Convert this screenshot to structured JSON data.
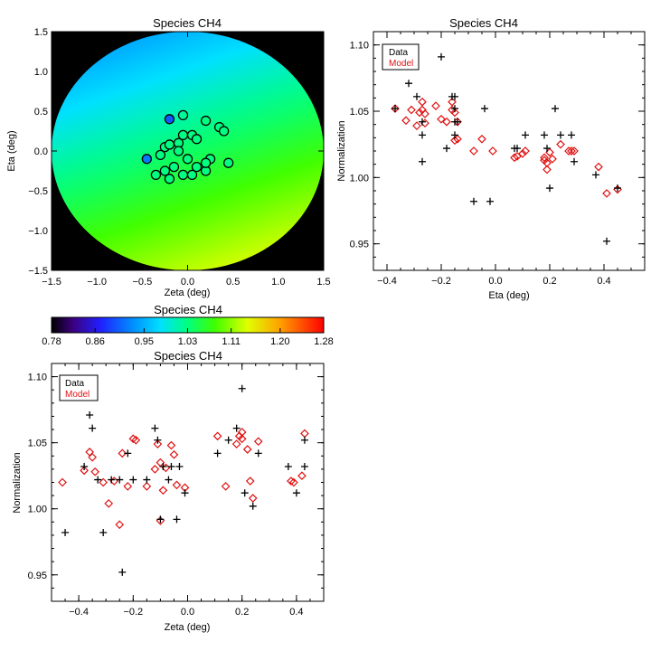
{
  "colors": {
    "data_marker": "#000000",
    "model_marker": "#e01010",
    "background": "#ffffff",
    "map_outside": "#000000"
  },
  "chart_data": [
    {
      "id": "map",
      "type": "heatmap",
      "title": "Species CH4",
      "xlabel": "Zeta (deg)",
      "ylabel": "Eta (deg)",
      "xlim": [
        -1.5,
        1.5
      ],
      "ylim": [
        -1.5,
        1.5
      ],
      "xticks": [
        -1.5,
        -1.0,
        -0.5,
        0.0,
        0.5,
        1.0,
        1.5
      ],
      "xtick_labels": [
        "−1.5",
        "−1.0",
        "−0.5",
        "0.0",
        "0.5",
        "1.0",
        "1.5"
      ],
      "yticks": [
        -1.5,
        -1.0,
        -0.5,
        0.0,
        0.5,
        1.0,
        1.5
      ],
      "ytick_labels": [
        "−1.5",
        "−1.0",
        "−0.5",
        "0.0",
        "0.5",
        "1.0",
        "1.5"
      ],
      "field_radius_deg": 1.5,
      "field_value_top": 0.94,
      "field_value_bottom": 1.14,
      "points": [
        [
          -0.2,
          0.4,
          0.9
        ],
        [
          -0.05,
          0.45,
          1.02
        ],
        [
          -0.45,
          -0.1,
          0.92
        ],
        [
          -0.3,
          -0.05,
          1.03
        ],
        [
          -0.25,
          0.05,
          1.03
        ],
        [
          -0.2,
          0.08,
          1.03
        ],
        [
          -0.1,
          0.1,
          1.03
        ],
        [
          -0.05,
          0.2,
          1.03
        ],
        [
          0.05,
          0.2,
          1.03
        ],
        [
          0.1,
          0.15,
          1.03
        ],
        [
          0.2,
          0.38,
          1.03
        ],
        [
          0.35,
          0.3,
          1.03
        ],
        [
          0.4,
          0.25,
          1.03
        ],
        [
          -0.35,
          -0.3,
          1.03
        ],
        [
          -0.25,
          -0.25,
          1.03
        ],
        [
          -0.15,
          -0.2,
          1.03
        ],
        [
          -0.05,
          -0.3,
          1.03
        ],
        [
          0.05,
          -0.3,
          1.03
        ],
        [
          0.1,
          -0.2,
          1.03
        ],
        [
          0.2,
          -0.25,
          1.03
        ],
        [
          0.25,
          -0.1,
          1.03
        ],
        [
          0.45,
          -0.15,
          1.03
        ],
        [
          -0.2,
          -0.35,
          1.03
        ],
        [
          0.2,
          -0.15,
          1.03
        ],
        [
          -0.1,
          0.0,
          1.03
        ],
        [
          0.0,
          -0.1,
          1.03
        ]
      ]
    },
    {
      "id": "colorbar",
      "type": "heatmap",
      "title": "Species CH4",
      "range": [
        0.78,
        1.28
      ],
      "tick_values": [
        0.78,
        0.86,
        0.95,
        1.03,
        1.11,
        1.2,
        1.28
      ],
      "tick_labels": [
        "0.78",
        "0.86",
        "0.95",
        "1.03",
        "1.11",
        "1.20",
        "1.28"
      ]
    },
    {
      "id": "eta",
      "type": "scatter",
      "title": "Species CH4",
      "xlabel": "Eta (deg)",
      "ylabel": "Normalization",
      "xlim": [
        -0.45,
        0.55
      ],
      "ylim": [
        0.93,
        1.11
      ],
      "xticks": [
        -0.4,
        -0.2,
        0.0,
        0.2,
        0.4
      ],
      "xtick_labels": [
        "−0.4",
        "−0.2",
        "0.0",
        "0.2",
        "0.4"
      ],
      "yticks": [
        0.95,
        1.0,
        1.05,
        1.1
      ],
      "ytick_labels": [
        "0.95",
        "1.00",
        "1.05",
        "1.10"
      ],
      "legend": {
        "location": "top-left",
        "data_label": "Data",
        "model_label": "Model"
      },
      "series": [
        {
          "name": "Data",
          "marker": "plus",
          "x": [
            -0.37,
            -0.32,
            -0.29,
            -0.27,
            -0.27,
            -0.27,
            -0.2,
            -0.18,
            -0.16,
            -0.15,
            -0.15,
            -0.14,
            -0.15,
            -0.15,
            -0.08,
            -0.04,
            -0.02,
            0.07,
            0.08,
            0.11,
            0.18,
            0.19,
            0.2,
            0.22,
            0.24,
            0.28,
            0.29,
            0.37,
            0.41,
            0.45
          ],
          "y": [
            1.052,
            1.071,
            1.061,
            1.042,
            1.032,
            1.012,
            1.091,
            1.022,
            1.061,
            1.061,
            1.042,
            1.042,
            1.052,
            1.032,
            0.982,
            1.052,
            0.982,
            1.022,
            1.022,
            1.032,
            1.032,
            1.022,
            0.992,
            1.052,
            1.032,
            1.032,
            1.012,
            1.002,
            0.952,
            0.992
          ]
        },
        {
          "name": "Model",
          "marker": "diamond",
          "x": [
            -0.37,
            -0.33,
            -0.31,
            -0.29,
            -0.28,
            -0.27,
            -0.27,
            -0.26,
            -0.26,
            -0.22,
            -0.2,
            -0.18,
            -0.16,
            -0.16,
            -0.15,
            -0.15,
            -0.14,
            -0.14,
            -0.08,
            -0.05,
            -0.01,
            0.07,
            0.08,
            0.1,
            0.11,
            0.18,
            0.18,
            0.19,
            0.19,
            0.2,
            0.21,
            0.24,
            0.27,
            0.28,
            0.29,
            0.38,
            0.41,
            0.45
          ],
          "y": [
            1.052,
            1.043,
            1.051,
            1.039,
            1.049,
            1.057,
            1.051,
            1.048,
            1.041,
            1.054,
            1.044,
            1.042,
            1.057,
            1.051,
            1.049,
            1.028,
            1.029,
            1.042,
            1.02,
            1.029,
            1.02,
            1.015,
            1.016,
            1.018,
            1.02,
            1.015,
            1.013,
            1.011,
            1.006,
            1.019,
            1.014,
            1.025,
            1.02,
            1.02,
            1.02,
            1.008,
            0.988,
            0.991
          ]
        }
      ]
    },
    {
      "id": "zeta",
      "type": "scatter",
      "title": "Species CH4",
      "xlabel": "Zeta (deg)",
      "ylabel": "Normalization",
      "xlim": [
        -0.5,
        0.5
      ],
      "ylim": [
        0.93,
        1.11
      ],
      "xticks": [
        -0.4,
        -0.2,
        0.0,
        0.2,
        0.4
      ],
      "xtick_labels": [
        "−0.4",
        "−0.2",
        "0.0",
        "0.2",
        "0.4"
      ],
      "yticks": [
        0.95,
        1.0,
        1.05,
        1.1
      ],
      "ytick_labels": [
        "0.95",
        "1.00",
        "1.05",
        "1.10"
      ],
      "legend": {
        "location": "top-left",
        "data_label": "Data",
        "model_label": "Model"
      },
      "series": [
        {
          "name": "Data",
          "marker": "plus",
          "x": [
            -0.45,
            -0.38,
            -0.36,
            -0.35,
            -0.33,
            -0.31,
            -0.28,
            -0.25,
            -0.24,
            -0.22,
            -0.2,
            -0.15,
            -0.12,
            -0.11,
            -0.1,
            -0.09,
            -0.07,
            -0.06,
            -0.04,
            -0.03,
            -0.01,
            0.11,
            0.15,
            0.18,
            0.2,
            0.21,
            0.24,
            0.26,
            0.37,
            0.4,
            0.43,
            0.43
          ],
          "y": [
            0.982,
            1.032,
            1.071,
            1.061,
            1.022,
            0.982,
            1.022,
            1.022,
            0.952,
            1.042,
            1.022,
            1.022,
            1.061,
            1.052,
            0.992,
            1.032,
            1.022,
            1.032,
            0.992,
            1.032,
            1.012,
            1.042,
            1.052,
            1.061,
            1.091,
            1.012,
            1.002,
            1.042,
            1.032,
            1.012,
            1.032,
            1.052
          ]
        },
        {
          "name": "Model",
          "marker": "diamond",
          "x": [
            -0.46,
            -0.38,
            -0.36,
            -0.35,
            -0.34,
            -0.31,
            -0.29,
            -0.27,
            -0.25,
            -0.24,
            -0.22,
            -0.2,
            -0.19,
            -0.15,
            -0.12,
            -0.11,
            -0.1,
            -0.1,
            -0.09,
            -0.08,
            -0.06,
            -0.05,
            -0.04,
            -0.01,
            0.11,
            0.14,
            0.18,
            0.19,
            0.2,
            0.2,
            0.22,
            0.23,
            0.24,
            0.26,
            0.38,
            0.39,
            0.42,
            0.43
          ],
          "y": [
            1.02,
            1.029,
            1.043,
            1.039,
            1.028,
            1.02,
            1.004,
            1.021,
            0.988,
            1.042,
            1.017,
            1.053,
            1.052,
            1.017,
            1.03,
            1.049,
            1.035,
            0.991,
            1.014,
            1.031,
            1.048,
            1.041,
            1.018,
            1.016,
            1.055,
            1.017,
            1.049,
            1.055,
            1.053,
            1.058,
            1.045,
            1.021,
            1.008,
            1.051,
            1.021,
            1.02,
            1.025,
            1.057
          ]
        }
      ]
    }
  ]
}
